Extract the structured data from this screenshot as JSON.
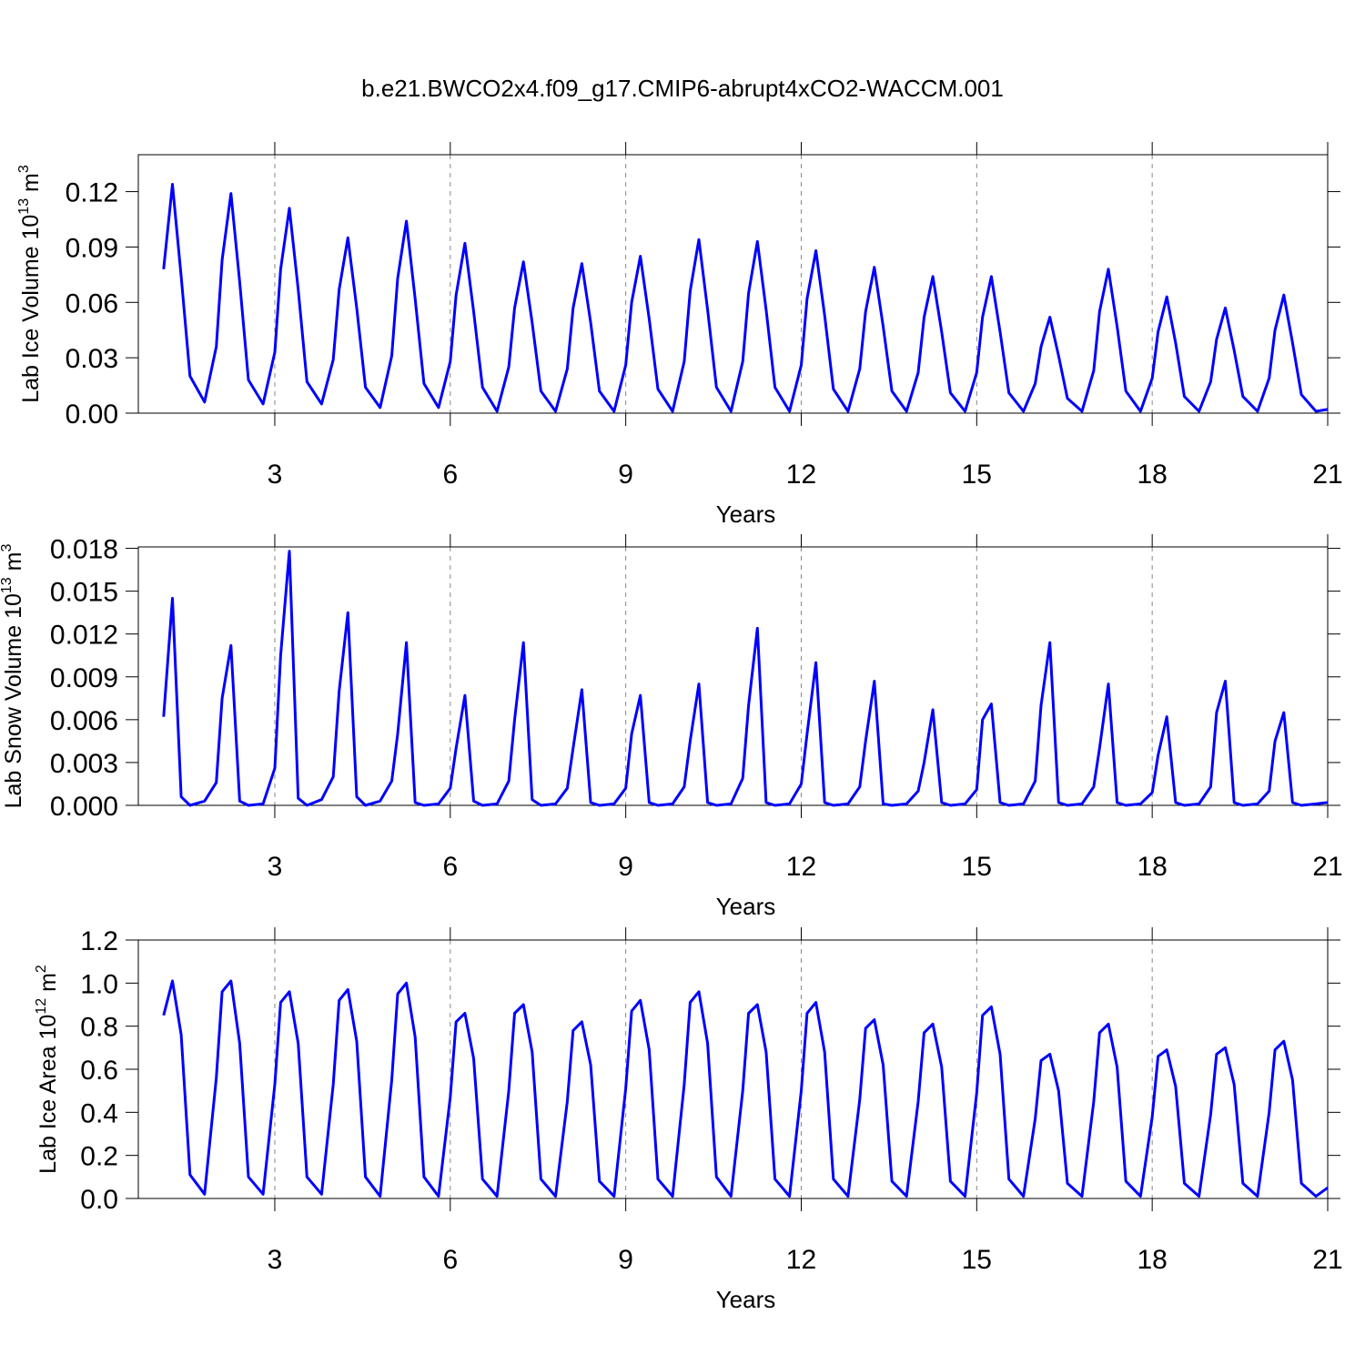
{
  "title": "b.e21.BWCO2x4.f09_g17.CMIP6-abrupt4xCO2-WACCM.001",
  "chart_data": [
    {
      "type": "line",
      "ylabel_parts": [
        "Lab Ice Volume 10",
        "13",
        " m",
        "3"
      ],
      "xlabel": "Years",
      "color": "#0000ff",
      "xlim": [
        0.667,
        21
      ],
      "xticks": [
        3,
        6,
        9,
        12,
        15,
        18,
        21
      ],
      "ylim": [
        0,
        0.14
      ],
      "yticks": [
        {
          "value": 0,
          "label": "0.00"
        },
        {
          "value": 0.03,
          "label": "0.03"
        },
        {
          "value": 0.06,
          "label": "0.06"
        },
        {
          "value": 0.09,
          "label": "0.09"
        },
        {
          "value": 0.12,
          "label": "0.12"
        }
      ],
      "grid": true,
      "x": [
        1.1,
        1.25,
        1.4,
        1.55,
        1.8,
        2.0,
        2.1,
        2.25,
        2.4,
        2.55,
        2.8,
        3.0,
        3.1,
        3.25,
        3.4,
        3.55,
        3.8,
        4.0,
        4.1,
        4.25,
        4.4,
        4.55,
        4.8,
        5.0,
        5.1,
        5.25,
        5.4,
        5.55,
        5.8,
        6.0,
        6.1,
        6.25,
        6.4,
        6.55,
        6.8,
        7.0,
        7.1,
        7.25,
        7.4,
        7.55,
        7.8,
        8.0,
        8.1,
        8.25,
        8.4,
        8.55,
        8.8,
        9.0,
        9.1,
        9.25,
        9.4,
        9.55,
        9.8,
        10.0,
        10.1,
        10.25,
        10.4,
        10.55,
        10.8,
        11.0,
        11.1,
        11.25,
        11.4,
        11.55,
        11.8,
        12.0,
        12.1,
        12.25,
        12.4,
        12.55,
        12.8,
        13.0,
        13.1,
        13.25,
        13.4,
        13.55,
        13.8,
        14.0,
        14.1,
        14.25,
        14.4,
        14.55,
        14.8,
        15.0,
        15.1,
        15.25,
        15.4,
        15.55,
        15.8,
        16.0,
        16.1,
        16.25,
        16.4,
        16.55,
        16.8,
        17.0,
        17.1,
        17.25,
        17.4,
        17.55,
        17.8,
        18.0,
        18.1,
        18.25,
        18.4,
        18.55,
        18.8,
        19.0,
        19.1,
        19.25,
        19.4,
        19.55,
        19.8,
        20.0,
        20.1,
        20.25,
        20.4,
        20.55,
        20.8,
        21.0
      ],
      "values": [
        0.078,
        0.124,
        0.074,
        0.02,
        0.006,
        0.036,
        0.083,
        0.119,
        0.071,
        0.018,
        0.005,
        0.033,
        0.078,
        0.111,
        0.067,
        0.017,
        0.005,
        0.029,
        0.067,
        0.095,
        0.057,
        0.014,
        0.003,
        0.031,
        0.073,
        0.104,
        0.062,
        0.016,
        0.003,
        0.028,
        0.064,
        0.092,
        0.055,
        0.014,
        0.001,
        0.025,
        0.057,
        0.082,
        0.049,
        0.012,
        0.001,
        0.024,
        0.057,
        0.081,
        0.049,
        0.012,
        0.001,
        0.026,
        0.06,
        0.085,
        0.051,
        0.013,
        0.001,
        0.028,
        0.066,
        0.094,
        0.056,
        0.014,
        0.001,
        0.028,
        0.065,
        0.093,
        0.056,
        0.014,
        0.001,
        0.026,
        0.062,
        0.088,
        0.053,
        0.013,
        0.001,
        0.024,
        0.055,
        0.079,
        0.047,
        0.012,
        0.001,
        0.022,
        0.052,
        0.074,
        0.044,
        0.011,
        0.001,
        0.022,
        0.052,
        0.074,
        0.044,
        0.011,
        0.001,
        0.016,
        0.036,
        0.052,
        0.031,
        0.008,
        0.001,
        0.023,
        0.055,
        0.078,
        0.047,
        0.012,
        0.001,
        0.019,
        0.044,
        0.063,
        0.038,
        0.009,
        0.001,
        0.017,
        0.04,
        0.057,
        0.034,
        0.009,
        0.001,
        0.019,
        0.045,
        0.064,
        0.038,
        0.01,
        0.001,
        0.002
      ]
    },
    {
      "type": "line",
      "ylabel_parts": [
        "Lab Snow Volume 10",
        "13",
        " m",
        "3"
      ],
      "xlabel": "Years",
      "color": "#0000ff",
      "xlim": [
        0.667,
        21
      ],
      "xticks": [
        3,
        6,
        9,
        12,
        15,
        18,
        21
      ],
      "ylim": [
        0,
        0.0181
      ],
      "yticks": [
        {
          "value": 0,
          "label": "0.000"
        },
        {
          "value": 0.003,
          "label": "0.003"
        },
        {
          "value": 0.006,
          "label": "0.006"
        },
        {
          "value": 0.009,
          "label": "0.009"
        },
        {
          "value": 0.012,
          "label": "0.012"
        },
        {
          "value": 0.015,
          "label": "0.015"
        },
        {
          "value": 0.018,
          "label": "0.018"
        }
      ],
      "grid": true,
      "x": [
        1.1,
        1.25,
        1.4,
        1.55,
        1.8,
        2.0,
        2.1,
        2.25,
        2.4,
        2.55,
        2.8,
        3.0,
        3.1,
        3.25,
        3.4,
        3.55,
        3.8,
        4.0,
        4.1,
        4.25,
        4.4,
        4.55,
        4.8,
        5.0,
        5.1,
        5.25,
        5.4,
        5.55,
        5.8,
        6.0,
        6.1,
        6.25,
        6.4,
        6.55,
        6.8,
        7.0,
        7.1,
        7.25,
        7.4,
        7.55,
        7.8,
        8.0,
        8.1,
        8.25,
        8.4,
        8.55,
        8.8,
        9.0,
        9.1,
        9.25,
        9.4,
        9.55,
        9.8,
        10.0,
        10.1,
        10.25,
        10.4,
        10.55,
        10.8,
        11.0,
        11.1,
        11.25,
        11.4,
        11.55,
        11.8,
        12.0,
        12.1,
        12.25,
        12.4,
        12.55,
        12.8,
        13.0,
        13.1,
        13.25,
        13.4,
        13.55,
        13.8,
        14.0,
        14.1,
        14.25,
        14.4,
        14.55,
        14.8,
        15.0,
        15.1,
        15.25,
        15.4,
        15.55,
        15.8,
        16.0,
        16.1,
        16.25,
        16.4,
        16.55,
        16.8,
        17.0,
        17.1,
        17.25,
        17.4,
        17.55,
        17.8,
        18.0,
        18.1,
        18.25,
        18.4,
        18.55,
        18.8,
        19.0,
        19.1,
        19.25,
        19.4,
        19.55,
        19.8,
        20.0,
        20.1,
        20.25,
        20.4,
        20.55,
        20.8,
        21.0
      ],
      "values": [
        0.0062,
        0.0145,
        0.0006,
        0,
        0.0003,
        0.0016,
        0.0075,
        0.0112,
        0.0003,
        0,
        0.0001,
        0.0026,
        0.0105,
        0.0178,
        0.0005,
        0,
        0.0004,
        0.002,
        0.008,
        0.0135,
        0.0006,
        0,
        0.0003,
        0.0017,
        0.005,
        0.0114,
        0.0002,
        0,
        0.0001,
        0.0012,
        0.004,
        0.0077,
        0.0003,
        0,
        0.0001,
        0.0017,
        0.006,
        0.0114,
        0.0004,
        0,
        0.0001,
        0.0012,
        0.004,
        0.0081,
        0.0002,
        0,
        0.0001,
        0.0012,
        0.005,
        0.0077,
        0.0002,
        0,
        0.0001,
        0.0013,
        0.0045,
        0.0085,
        0.0002,
        0,
        0.0001,
        0.0019,
        0.007,
        0.0124,
        0.0002,
        0,
        0.0001,
        0.0015,
        0.005,
        0.01,
        0.0002,
        0,
        0.0001,
        0.0013,
        0.0045,
        0.0087,
        0.0001,
        0,
        0.0001,
        0.001,
        0.003,
        0.0067,
        0.0002,
        0,
        0.0001,
        0.0011,
        0.006,
        0.0071,
        0.0002,
        0,
        0.0001,
        0.0017,
        0.007,
        0.0114,
        0.0002,
        0,
        0.0001,
        0.0013,
        0.004,
        0.0085,
        0.0002,
        0,
        0.0001,
        0.0009,
        0.0035,
        0.0062,
        0.0002,
        0,
        0.0001,
        0.0013,
        0.0065,
        0.0087,
        0.0002,
        0,
        0.0001,
        0.001,
        0.0045,
        0.0065,
        0.0002,
        0,
        0.0001,
        0.0002
      ]
    },
    {
      "type": "line",
      "ylabel_parts": [
        "Lab Ice Area 10",
        "12",
        " m",
        "2"
      ],
      "xlabel": "Years",
      "color": "#0000ff",
      "xlim": [
        0.667,
        21
      ],
      "xticks": [
        3,
        6,
        9,
        12,
        15,
        18,
        21
      ],
      "ylim": [
        0,
        1.2
      ],
      "yticks": [
        {
          "value": 0,
          "label": "0.0"
        },
        0.2,
        0.4,
        0.6,
        0.8,
        {
          "value": 1,
          "label": "1.0"
        },
        1.2
      ],
      "grid": true,
      "x": [
        1.1,
        1.25,
        1.4,
        1.55,
        1.8,
        2.0,
        2.1,
        2.25,
        2.4,
        2.55,
        2.8,
        3.0,
        3.1,
        3.25,
        3.4,
        3.55,
        3.8,
        4.0,
        4.1,
        4.25,
        4.4,
        4.55,
        4.8,
        5.0,
        5.1,
        5.25,
        5.4,
        5.55,
        5.8,
        6.0,
        6.1,
        6.25,
        6.4,
        6.55,
        6.8,
        7.0,
        7.1,
        7.25,
        7.4,
        7.55,
        7.8,
        8.0,
        8.1,
        8.25,
        8.4,
        8.55,
        8.8,
        9.0,
        9.1,
        9.25,
        9.4,
        9.55,
        9.8,
        10.0,
        10.1,
        10.25,
        10.4,
        10.55,
        10.8,
        11.0,
        11.1,
        11.25,
        11.4,
        11.55,
        11.8,
        12.0,
        12.1,
        12.25,
        12.4,
        12.55,
        12.8,
        13.0,
        13.1,
        13.25,
        13.4,
        13.55,
        13.8,
        14.0,
        14.1,
        14.25,
        14.4,
        14.55,
        14.8,
        15.0,
        15.1,
        15.25,
        15.4,
        15.55,
        15.8,
        16.0,
        16.1,
        16.25,
        16.4,
        16.55,
        16.8,
        17.0,
        17.1,
        17.25,
        17.4,
        17.55,
        17.8,
        18.0,
        18.1,
        18.25,
        18.4,
        18.55,
        18.8,
        19.0,
        19.1,
        19.25,
        19.4,
        19.55,
        19.8,
        20.0,
        20.1,
        20.25,
        20.4,
        20.55,
        20.8,
        21.0
      ],
      "values": [
        0.85,
        1.01,
        0.76,
        0.11,
        0.02,
        0.56,
        0.96,
        1.01,
        0.72,
        0.1,
        0.02,
        0.53,
        0.91,
        0.96,
        0.72,
        0.1,
        0.02,
        0.53,
        0.92,
        0.97,
        0.73,
        0.1,
        0.01,
        0.55,
        0.95,
        1.0,
        0.75,
        0.1,
        0.01,
        0.47,
        0.82,
        0.86,
        0.65,
        0.09,
        0.01,
        0.5,
        0.86,
        0.9,
        0.68,
        0.09,
        0.01,
        0.45,
        0.78,
        0.82,
        0.62,
        0.08,
        0.01,
        0.51,
        0.87,
        0.92,
        0.69,
        0.09,
        0.01,
        0.53,
        0.91,
        0.96,
        0.72,
        0.1,
        0.01,
        0.5,
        0.86,
        0.9,
        0.68,
        0.09,
        0.01,
        0.5,
        0.86,
        0.91,
        0.68,
        0.09,
        0.01,
        0.46,
        0.79,
        0.83,
        0.62,
        0.08,
        0.01,
        0.45,
        0.77,
        0.81,
        0.61,
        0.08,
        0.01,
        0.49,
        0.85,
        0.89,
        0.67,
        0.09,
        0.01,
        0.37,
        0.64,
        0.67,
        0.5,
        0.07,
        0.01,
        0.45,
        0.77,
        0.81,
        0.61,
        0.08,
        0.01,
        0.38,
        0.66,
        0.69,
        0.52,
        0.07,
        0.01,
        0.39,
        0.67,
        0.7,
        0.53,
        0.07,
        0.01,
        0.4,
        0.69,
        0.73,
        0.55,
        0.07,
        0.01,
        0.05
      ]
    }
  ]
}
